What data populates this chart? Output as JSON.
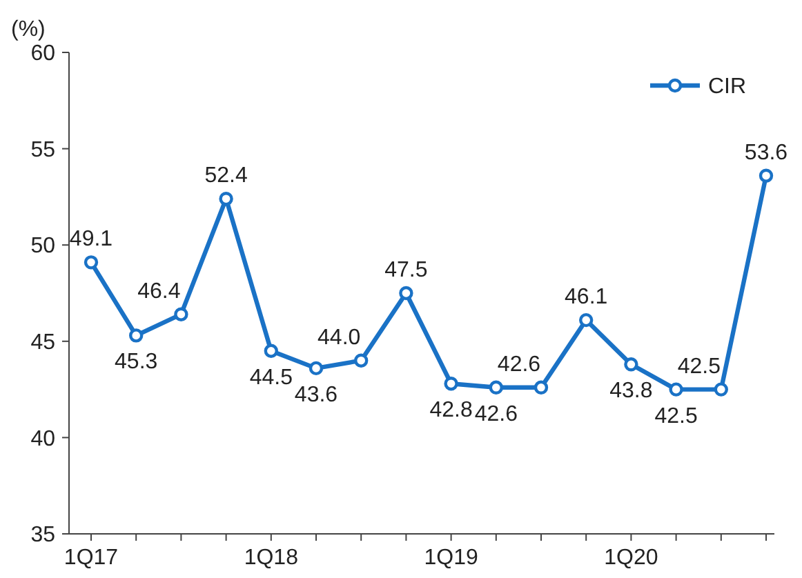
{
  "chart_data": {
    "type": "line",
    "ylabel": "(%)",
    "categories": [
      "1Q17",
      null,
      null,
      null,
      "1Q18",
      null,
      null,
      null,
      "1Q19",
      null,
      null,
      null,
      "1Q20",
      null,
      null,
      null
    ],
    "series": [
      {
        "name": "CIR",
        "color": "#1a72c6",
        "values": [
          49.1,
          45.3,
          46.4,
          52.4,
          44.5,
          43.6,
          44.0,
          47.5,
          42.8,
          42.6,
          42.6,
          46.1,
          43.8,
          42.5,
          42.5,
          53.6
        ]
      }
    ],
    "ylim": [
      35,
      60
    ],
    "yticks": [
      35,
      40,
      45,
      50,
      55,
      60
    ],
    "value_labels": [
      "49.1",
      "45.3",
      "46.4",
      "52.4",
      "44.5",
      "43.6",
      "44.0",
      "47.5",
      "42.8",
      "42.6",
      "42.6",
      "46.1",
      "43.8",
      "42.5",
      "42.5",
      "53.6"
    ],
    "grid": false,
    "legend": "top right",
    "marker": "circle",
    "line_style": "solid"
  }
}
